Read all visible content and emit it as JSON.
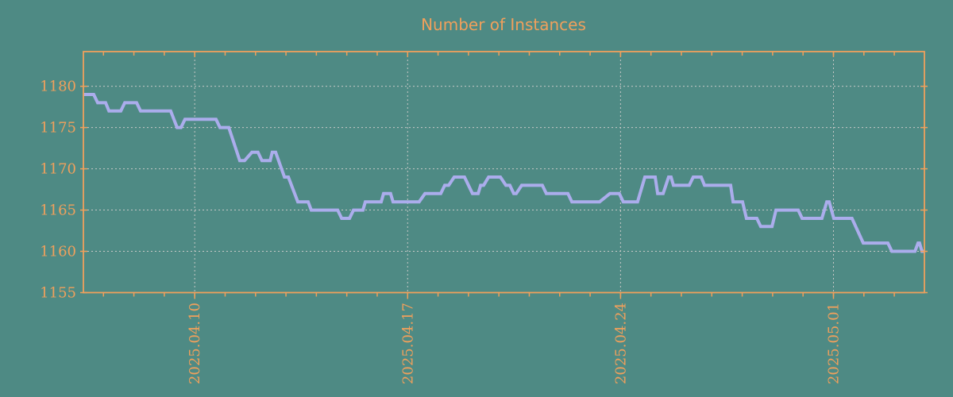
{
  "title": "Number of Instances",
  "colors": {
    "background": "#4e8a84",
    "accent_orange": "#f0a05c",
    "line_purple": "#abadec",
    "grid_gray": "#c6c8c6"
  },
  "chart_data": {
    "type": "line",
    "title": "Number of Instances",
    "legend": false,
    "grid": true,
    "x_axis": {
      "tick_labels": [
        "2025.04.10",
        "2025.04.17",
        "2025.04.24",
        "2025.05.01"
      ],
      "tick_positions_days": [
        3.66,
        10.66,
        17.66,
        24.66
      ],
      "minor_tick_first_day": 0.66,
      "minor_tick_interval_days": 1,
      "total_days": 27.65
    },
    "y_axis": {
      "tick_values": [
        1155,
        1160,
        1165,
        1170,
        1175,
        1180
      ],
      "grid_values": [
        1160,
        1165,
        1170,
        1175,
        1180
      ],
      "range": [
        1155,
        1184.2
      ]
    },
    "series": [
      {
        "name": "instances",
        "segments_day_start_end_value": [
          [
            0.0,
            0.34,
            1179
          ],
          [
            0.47,
            0.73,
            1178
          ],
          [
            0.84,
            1.23,
            1177
          ],
          [
            1.36,
            1.75,
            1178
          ],
          [
            1.88,
            2.87,
            1177
          ],
          [
            3.08,
            3.21,
            1175
          ],
          [
            3.34,
            4.36,
            1176
          ],
          [
            4.49,
            4.78,
            1175
          ],
          [
            5.14,
            5.3,
            1171
          ],
          [
            5.54,
            5.74,
            1172
          ],
          [
            5.87,
            6.14,
            1171
          ],
          [
            6.21,
            6.32,
            1172
          ],
          [
            6.61,
            6.74,
            1169
          ],
          [
            7.05,
            7.39,
            1166
          ],
          [
            7.49,
            8.36,
            1165
          ],
          [
            8.49,
            8.75,
            1164
          ],
          [
            8.88,
            9.19,
            1165
          ],
          [
            9.27,
            9.79,
            1166
          ],
          [
            9.87,
            10.1,
            1167
          ],
          [
            10.18,
            11.04,
            1166
          ],
          [
            11.23,
            11.75,
            1167
          ],
          [
            11.88,
            12.01,
            1168
          ],
          [
            12.19,
            12.53,
            1169
          ],
          [
            12.79,
            12.98,
            1167
          ],
          [
            13.06,
            13.16,
            1168
          ],
          [
            13.32,
            13.71,
            1169
          ],
          [
            13.89,
            14.02,
            1168
          ],
          [
            14.15,
            14.23,
            1167
          ],
          [
            14.41,
            15.09,
            1168
          ],
          [
            15.22,
            15.93,
            1167
          ],
          [
            16.06,
            16.97,
            1166
          ],
          [
            17.31,
            17.62,
            1167
          ],
          [
            17.75,
            18.22,
            1166
          ],
          [
            18.46,
            18.8,
            1169
          ],
          [
            18.88,
            19.06,
            1167
          ],
          [
            19.24,
            19.32,
            1169
          ],
          [
            19.4,
            19.92,
            1168
          ],
          [
            20.05,
            20.31,
            1169
          ],
          [
            20.42,
            21.28,
            1168
          ],
          [
            21.36,
            21.67,
            1166
          ],
          [
            21.8,
            22.14,
            1164
          ],
          [
            22.27,
            22.64,
            1163
          ],
          [
            22.77,
            23.5,
            1165
          ],
          [
            23.63,
            24.28,
            1164
          ],
          [
            24.44,
            24.52,
            1166
          ],
          [
            24.67,
            25.27,
            1164
          ],
          [
            25.64,
            26.45,
            1161
          ],
          [
            26.58,
            27.34,
            1160
          ],
          [
            27.44,
            27.49,
            1161
          ],
          [
            27.57,
            27.65,
            1160
          ]
        ]
      }
    ]
  }
}
